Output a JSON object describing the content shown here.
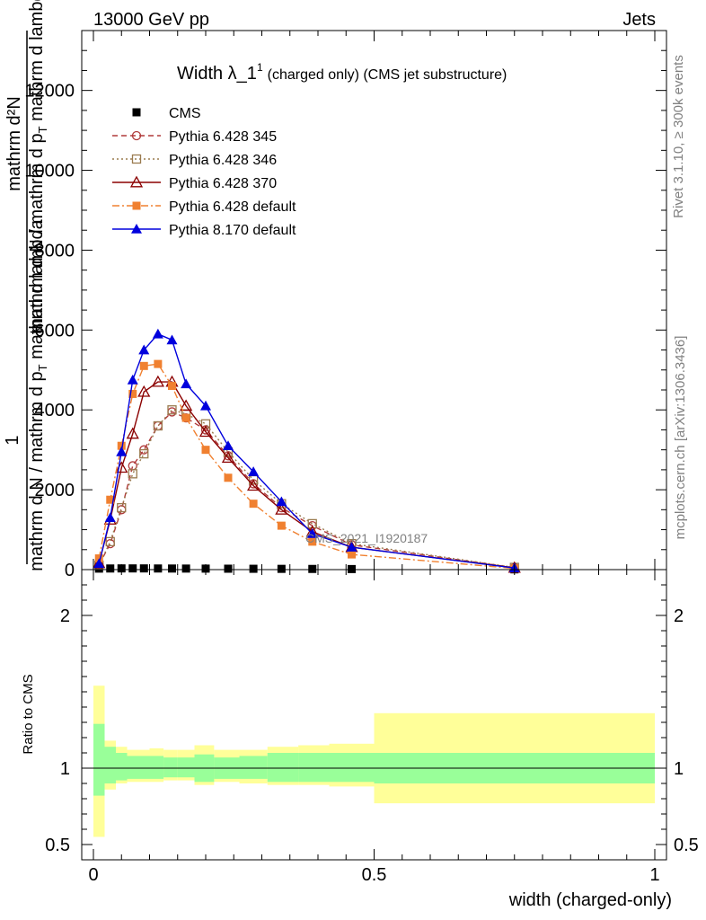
{
  "header": {
    "left": "13000 GeV pp",
    "right": "Jets"
  },
  "side_text": {
    "rivet": "Rivet 3.1.10, ≥ 300k events",
    "mcplots": "mcplots.cern.ch [arXiv:1306.3436]"
  },
  "watermark": "CMS_2021_I1920187",
  "chart_data": [
    {
      "type": "line",
      "title_main": "Width λ_1",
      "title_sup": "1",
      "title_rest": "(charged only) (CMS jet substructure)",
      "ylabel_top": "1",
      "ylabel_num": "mathrm d²N",
      "ylabel_den": "mathrm d N / mathrm d p",
      "ylabel_den_sub": "T",
      "ylabel_den_rest": " mathrm d lambda",
      "ylabel_left": "mathrm d N / mathrm d p",
      "ylabel_left_sub": "T",
      "ylabel_left_rest": " mathrm d lambda",
      "xlim": [
        0,
        1
      ],
      "ylim": [
        0,
        13500
      ],
      "yticks": [
        0,
        2000,
        4000,
        6000,
        8000,
        10000,
        12000
      ],
      "ytick_labels": [
        "0",
        "2000",
        "4000",
        "6000",
        "8000",
        "10000",
        "12000"
      ],
      "log": false,
      "legend_position": "top-left",
      "x": [
        0.01,
        0.03,
        0.05,
        0.07,
        0.09,
        0.115,
        0.14,
        0.165,
        0.2,
        0.24,
        0.285,
        0.335,
        0.39,
        0.46,
        0.75
      ],
      "series": [
        {
          "name": "CMS",
          "color": "#000000",
          "marker": "filled-square",
          "line": "none",
          "values": [
            25,
            28,
            30,
            30,
            30,
            28,
            27,
            26,
            25,
            23,
            21,
            19,
            17,
            14,
            6
          ]
        },
        {
          "name": "Pythia 6.428 345",
          "color": "#b03a3a",
          "marker": "open-circle",
          "line": "dashed",
          "values": [
            120,
            650,
            1500,
            2600,
            3000,
            3600,
            3950,
            3800,
            3500,
            2850,
            2150,
            1550,
            1100,
            620,
            50
          ]
        },
        {
          "name": "Pythia 6.428 346",
          "color": "#9a7b4f",
          "marker": "open-square",
          "line": "dotted",
          "values": [
            110,
            700,
            1550,
            2400,
            2900,
            3600,
            4000,
            3900,
            3650,
            2950,
            2250,
            1650,
            1150,
            650,
            55
          ]
        },
        {
          "name": "Pythia 6.428 370",
          "color": "#8b0000",
          "marker": "open-triangle",
          "line": "solid",
          "values": [
            160,
            1250,
            2550,
            3400,
            4450,
            4700,
            4700,
            4100,
            3450,
            2800,
            2100,
            1500,
            950,
            560,
            45
          ]
        },
        {
          "name": "Pythia 6.428 default",
          "color": "#f08030",
          "marker": "filled-square",
          "line": "dashdot",
          "values": [
            280,
            1750,
            3100,
            4400,
            5100,
            5150,
            4600,
            3800,
            3000,
            2300,
            1650,
            1100,
            700,
            380,
            30
          ]
        },
        {
          "name": "Pythia 8.170 default",
          "color": "#0000dd",
          "marker": "filled-triangle",
          "line": "solid",
          "values": [
            150,
            1300,
            2950,
            4750,
            5500,
            5900,
            5750,
            4650,
            4100,
            3100,
            2450,
            1700,
            900,
            560,
            40
          ]
        }
      ]
    },
    {
      "type": "area",
      "ylabel": "Ratio to CMS",
      "xlabel": "width (charged-only)",
      "xlim": [
        0,
        1
      ],
      "ylim": [
        0.4,
        2.3
      ],
      "xticks": [
        0,
        0.5,
        1
      ],
      "xtick_labels": [
        "0",
        "0.5",
        "1"
      ],
      "yticks": [
        0.5,
        1,
        2
      ],
      "ytick_labels": [
        "0.5",
        "1",
        "2"
      ],
      "bin_edges": [
        0,
        0.02,
        0.04,
        0.06,
        0.08,
        0.1,
        0.125,
        0.15,
        0.18,
        0.215,
        0.26,
        0.31,
        0.365,
        0.42,
        0.5,
        1.0
      ],
      "inner_band": [
        [
          0.82,
          1.29
        ],
        [
          0.9,
          1.14
        ],
        [
          0.92,
          1.1
        ],
        [
          0.93,
          1.08
        ],
        [
          0.93,
          1.08
        ],
        [
          0.93,
          1.08
        ],
        [
          0.94,
          1.07
        ],
        [
          0.94,
          1.07
        ],
        [
          0.91,
          1.09
        ],
        [
          0.93,
          1.07
        ],
        [
          0.93,
          1.08
        ],
        [
          0.91,
          1.1
        ],
        [
          0.91,
          1.1
        ],
        [
          0.91,
          1.1
        ],
        [
          0.9,
          1.1
        ]
      ],
      "outer_band": [
        [
          0.55,
          1.54
        ],
        [
          0.86,
          1.18
        ],
        [
          0.9,
          1.14
        ],
        [
          0.91,
          1.12
        ],
        [
          0.91,
          1.12
        ],
        [
          0.91,
          1.13
        ],
        [
          0.92,
          1.12
        ],
        [
          0.92,
          1.12
        ],
        [
          0.89,
          1.15
        ],
        [
          0.91,
          1.12
        ],
        [
          0.9,
          1.12
        ],
        [
          0.89,
          1.14
        ],
        [
          0.89,
          1.15
        ],
        [
          0.88,
          1.16
        ],
        [
          0.77,
          1.36
        ]
      ],
      "inner_color": "#99ff99",
      "outer_color": "#ffff99",
      "reference": 1
    }
  ]
}
